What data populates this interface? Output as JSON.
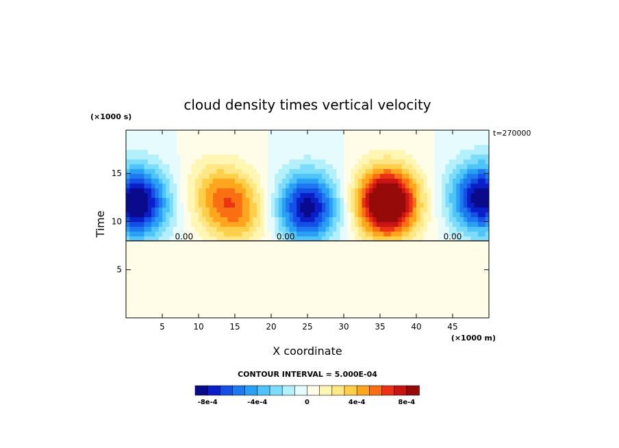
{
  "chart_data": {
    "type": "heatmap",
    "title": "cloud density times vertical velocity",
    "xlabel": "X coordinate",
    "ylabel": "Time",
    "x_units": "(×1000 m)",
    "y_units": "(×1000 s)",
    "annotation": "t=270000",
    "xlim": [
      0,
      50
    ],
    "ylim": [
      0,
      19.5
    ],
    "x_ticks": [
      5,
      10,
      15,
      20,
      25,
      30,
      35,
      40,
      45
    ],
    "y_ticks": [
      5,
      10,
      15
    ],
    "contour_interval_label": "CONTOUR INTERVAL = 5.000E-04",
    "contour_labels": [
      "0.00",
      "0.00",
      "0.00"
    ],
    "onset_time": 8.0,
    "anomalies": [
      {
        "x": 1.5,
        "y": 12.0,
        "value": -0.00095
      },
      {
        "x": 12.5,
        "y": 13.0,
        "value": 0.00035
      },
      {
        "x": 15.5,
        "y": 11.0,
        "value": 0.0004
      },
      {
        "x": 25.0,
        "y": 11.5,
        "value": -0.00085
      },
      {
        "x": 36.0,
        "y": 12.0,
        "value": 0.00115
      },
      {
        "x": 49.0,
        "y": 12.5,
        "value": -0.0009
      }
    ],
    "colorbar": {
      "colors": [
        "#0a0a8c",
        "#0a1fc8",
        "#1450e6",
        "#1e78f0",
        "#2aa0f5",
        "#4ec4f8",
        "#7ddcfa",
        "#b4effc",
        "#e6fbfd",
        "#fffde8",
        "#fff6b4",
        "#ffe785",
        "#ffcf4a",
        "#ffa51e",
        "#fa6e14",
        "#eb3214",
        "#c81414",
        "#960a0a"
      ],
      "tick_labels": [
        "-8e-4",
        "-4e-4",
        "0",
        "4e-4",
        "8e-4"
      ],
      "tick_values": [
        -0.0008,
        -0.0004,
        0,
        0.0004,
        0.0008
      ],
      "min": -0.0009,
      "max": 0.0009
    }
  }
}
